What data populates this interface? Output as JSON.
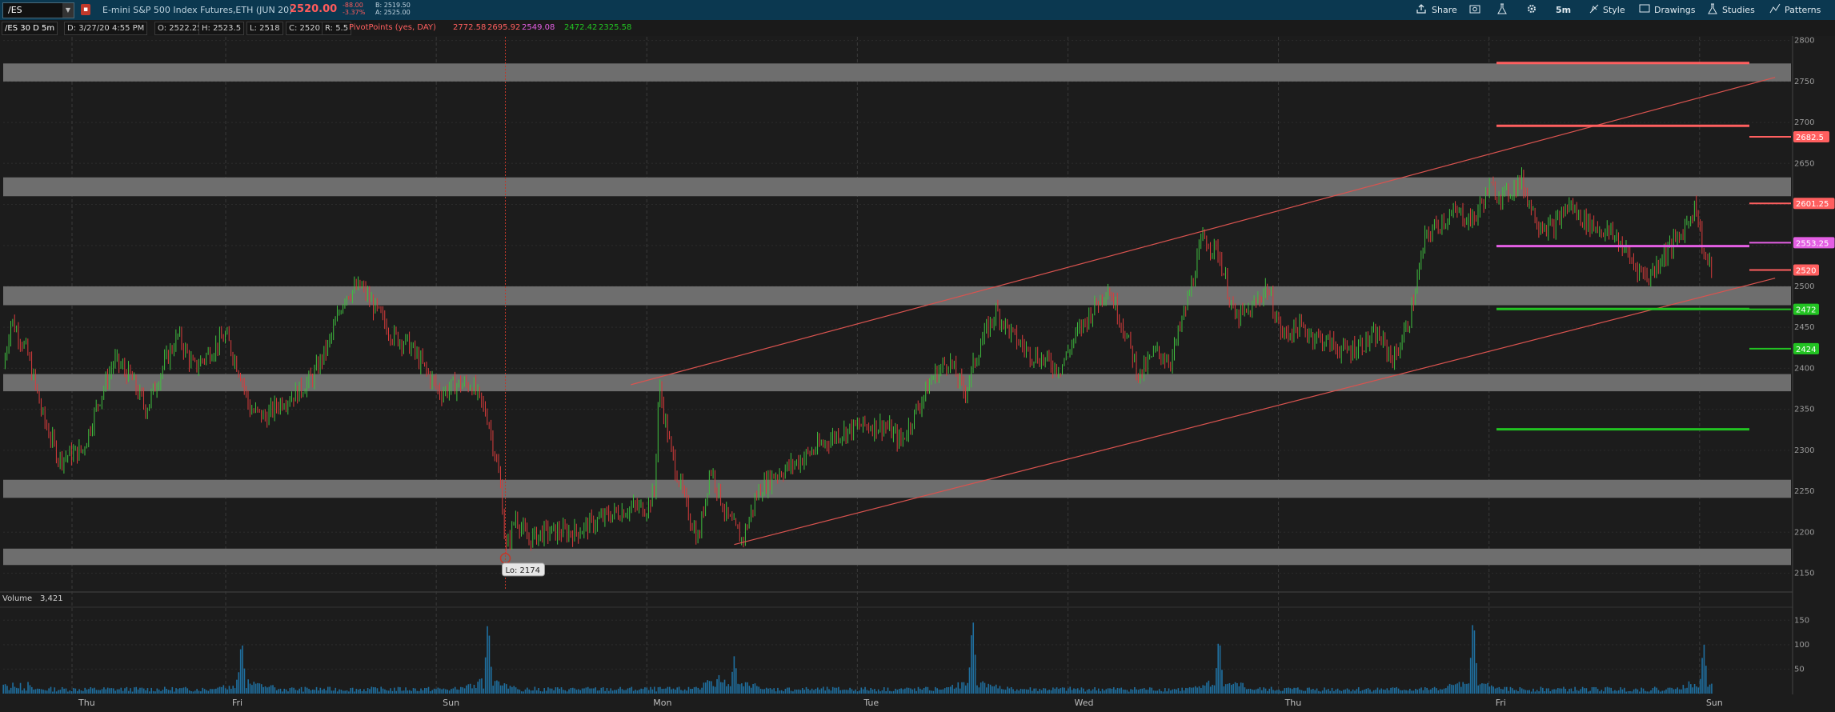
{
  "header": {
    "symbol": "/ES",
    "description": "E-mini S&P 500 Index Futures,ETH (JUN 20)",
    "last_price": "2520.00",
    "change_abs": "-88.00",
    "change_pct": "-3.37%",
    "bid": "B: 2519.50",
    "ask": "A: 2525.00",
    "toolbar": {
      "share": "Share",
      "timeframe": "5m",
      "style": "Style",
      "drawings": "Drawings",
      "studies": "Studies",
      "patterns": "Patterns"
    }
  },
  "infobar": {
    "chart_label": "/ES 30 D 5m",
    "date": "D: 3/27/20 4:55 PM",
    "open": "O: 2522.25",
    "high": "H: 2523.5",
    "low": "L: 2518",
    "close": "C: 2520",
    "range": "R: 5.5",
    "study_name": "PivotPoints (yes, DAY)",
    "pivot_values": [
      "2772.58",
      "2695.92",
      "2549.08",
      "2472.42",
      "2325.58"
    ]
  },
  "colors": {
    "background": "#1c1c1c",
    "up_candle": "#3fbf3f",
    "down_candle": "#d93c3c",
    "zone": "#6e6e6e",
    "channel": "#d9534f",
    "pivot_resistance": "#ff5f5f",
    "pivot_middle": "#e45fe4",
    "pivot_support": "#22c322",
    "volume": "#1f6f9f"
  },
  "chart_data": [
    {
      "type": "candlestick",
      "title": "/ES 30 D 5m",
      "x_labels": [
        "Thu",
        "Fri",
        "Sun",
        "Mon",
        "Tue",
        "Wed",
        "Thu",
        "Fri",
        "Sun"
      ],
      "y_ticks": [
        2150,
        2200,
        2250,
        2300,
        2350,
        2400,
        2450,
        2500,
        2550,
        2600,
        2650,
        2700,
        2750,
        2800
      ],
      "ylim": [
        2130,
        2805
      ],
      "grid": true,
      "price_path": [
        {
          "x": 0,
          "y": 2400
        },
        {
          "x": 0.1,
          "y": 2460
        },
        {
          "x": 0.3,
          "y": 2420
        },
        {
          "x": 0.5,
          "y": 2340
        },
        {
          "x": 0.7,
          "y": 2290
        },
        {
          "x": 1,
          "y": 2300
        },
        {
          "x": 1.2,
          "y": 2360
        },
        {
          "x": 1.4,
          "y": 2410
        },
        {
          "x": 1.6,
          "y": 2390
        },
        {
          "x": 1.8,
          "y": 2350
        },
        {
          "x": 2,
          "y": 2400
        },
        {
          "x": 2.2,
          "y": 2440
        },
        {
          "x": 2.4,
          "y": 2400
        },
        {
          "x": 2.6,
          "y": 2420
        },
        {
          "x": 2.8,
          "y": 2440
        },
        {
          "x": 3,
          "y": 2390
        },
        {
          "x": 3.1,
          "y": 2350
        },
        {
          "x": 3.3,
          "y": 2340
        },
        {
          "x": 3.5,
          "y": 2360
        },
        {
          "x": 3.7,
          "y": 2370
        },
        {
          "x": 3.9,
          "y": 2390
        },
        {
          "x": 4.1,
          "y": 2430
        },
        {
          "x": 4.3,
          "y": 2490
        },
        {
          "x": 4.5,
          "y": 2500
        },
        {
          "x": 4.7,
          "y": 2470
        },
        {
          "x": 4.9,
          "y": 2440
        },
        {
          "x": 5.1,
          "y": 2430
        },
        {
          "x": 5.3,
          "y": 2400
        },
        {
          "x": 5.5,
          "y": 2370
        },
        {
          "x": 5.7,
          "y": 2380
        },
        {
          "x": 5.9,
          "y": 2380
        },
        {
          "x": 6.1,
          "y": 2340
        },
        {
          "x": 6.2,
          "y": 2290
        },
        {
          "x": 6.27,
          "y": 2250
        },
        {
          "x": 6.3,
          "y": 2210
        },
        {
          "x": 6.32,
          "y": 2174
        },
        {
          "x": 6.45,
          "y": 2220
        },
        {
          "x": 6.6,
          "y": 2190
        },
        {
          "x": 6.8,
          "y": 2200
        },
        {
          "x": 7.0,
          "y": 2200
        },
        {
          "x": 7.2,
          "y": 2200
        },
        {
          "x": 7.4,
          "y": 2210
        },
        {
          "x": 7.6,
          "y": 2220
        },
        {
          "x": 7.9,
          "y": 2230
        },
        {
          "x": 8.1,
          "y": 2230
        },
        {
          "x": 8.2,
          "y": 2250
        },
        {
          "x": 8.25,
          "y": 2380
        },
        {
          "x": 8.4,
          "y": 2300
        },
        {
          "x": 8.6,
          "y": 2230
        },
        {
          "x": 8.75,
          "y": 2190
        },
        {
          "x": 8.9,
          "y": 2280
        },
        {
          "x": 9.1,
          "y": 2220
        },
        {
          "x": 9.3,
          "y": 2190
        },
        {
          "x": 9.5,
          "y": 2250
        },
        {
          "x": 9.7,
          "y": 2270
        },
        {
          "x": 9.9,
          "y": 2280
        },
        {
          "x": 10.2,
          "y": 2300
        },
        {
          "x": 10.5,
          "y": 2320
        },
        {
          "x": 10.8,
          "y": 2330
        },
        {
          "x": 11.1,
          "y": 2330
        },
        {
          "x": 11.3,
          "y": 2310
        },
        {
          "x": 11.5,
          "y": 2350
        },
        {
          "x": 11.7,
          "y": 2390
        },
        {
          "x": 11.9,
          "y": 2410
        },
        {
          "x": 12.1,
          "y": 2370
        },
        {
          "x": 12.3,
          "y": 2430
        },
        {
          "x": 12.5,
          "y": 2470
        },
        {
          "x": 12.7,
          "y": 2440
        },
        {
          "x": 12.9,
          "y": 2420
        },
        {
          "x": 13.1,
          "y": 2410
        },
        {
          "x": 13.3,
          "y": 2400
        },
        {
          "x": 13.5,
          "y": 2440
        },
        {
          "x": 13.7,
          "y": 2470
        },
        {
          "x": 13.9,
          "y": 2500
        },
        {
          "x": 14.1,
          "y": 2450
        },
        {
          "x": 14.3,
          "y": 2390
        },
        {
          "x": 14.5,
          "y": 2420
        },
        {
          "x": 14.7,
          "y": 2410
        },
        {
          "x": 14.9,
          "y": 2480
        },
        {
          "x": 15.1,
          "y": 2560
        },
        {
          "x": 15.3,
          "y": 2540
        },
        {
          "x": 15.5,
          "y": 2460
        },
        {
          "x": 15.7,
          "y": 2470
        },
        {
          "x": 15.9,
          "y": 2500
        },
        {
          "x": 16.1,
          "y": 2440
        },
        {
          "x": 16.3,
          "y": 2450
        },
        {
          "x": 16.5,
          "y": 2440
        },
        {
          "x": 16.7,
          "y": 2430
        },
        {
          "x": 16.9,
          "y": 2420
        },
        {
          "x": 17.1,
          "y": 2430
        },
        {
          "x": 17.3,
          "y": 2440
        },
        {
          "x": 17.5,
          "y": 2410
        },
        {
          "x": 17.7,
          "y": 2460
        },
        {
          "x": 17.9,
          "y": 2560
        },
        {
          "x": 18.1,
          "y": 2580
        },
        {
          "x": 18.3,
          "y": 2590
        },
        {
          "x": 18.5,
          "y": 2580
        },
        {
          "x": 18.7,
          "y": 2620
        },
        {
          "x": 18.9,
          "y": 2610
        },
        {
          "x": 19.1,
          "y": 2630
        },
        {
          "x": 19.3,
          "y": 2580
        },
        {
          "x": 19.5,
          "y": 2570
        },
        {
          "x": 19.7,
          "y": 2600
        },
        {
          "x": 19.9,
          "y": 2580
        },
        {
          "x": 20.1,
          "y": 2570
        },
        {
          "x": 20.3,
          "y": 2560
        },
        {
          "x": 20.5,
          "y": 2530
        },
        {
          "x": 20.7,
          "y": 2510
        },
        {
          "x": 20.9,
          "y": 2540
        },
        {
          "x": 21.1,
          "y": 2560
        },
        {
          "x": 21.3,
          "y": 2600
        },
        {
          "x": 21.4,
          "y": 2540
        },
        {
          "x": 21.5,
          "y": 2520
        }
      ],
      "zones": [
        {
          "from": 2750,
          "to": 2772
        },
        {
          "from": 2610,
          "to": 2633
        },
        {
          "from": 2477,
          "to": 2500
        },
        {
          "from": 2372,
          "to": 2393
        },
        {
          "from": 2242,
          "to": 2264
        },
        {
          "from": 2160,
          "to": 2180
        }
      ],
      "channel": [
        {
          "from": {
            "x": 7.9,
            "y": 2380
          },
          "to": {
            "x": 22.3,
            "y": 2755
          }
        },
        {
          "from": {
            "x": 9.2,
            "y": 2185
          },
          "to": {
            "x": 22.3,
            "y": 2510
          }
        }
      ],
      "pivot_lines": [
        {
          "level": 2772.58,
          "label": "",
          "color": "#ff5f5f"
        },
        {
          "level": 2695.92,
          "label": "",
          "color": "#ff5f5f"
        },
        {
          "level": 2549.08,
          "label": "",
          "color": "#e45fe4"
        },
        {
          "level": 2472.42,
          "label": "",
          "color": "#22c322"
        },
        {
          "level": 2325.58,
          "label": "",
          "color": "#22c322"
        }
      ],
      "price_tags": [
        {
          "value": 2682.5,
          "label": "2682.5",
          "color": "#ff5f5f"
        },
        {
          "value": 2601.25,
          "label": "2601.25",
          "color": "#ff5f5f"
        },
        {
          "value": 2553.25,
          "label": "2553.25",
          "color": "#e45fe4"
        },
        {
          "value": 2520,
          "label": "2520",
          "color": "#ff5f5f"
        },
        {
          "value": 2472,
          "label": "2472",
          "color": "#22c322"
        },
        {
          "value": 2424,
          "label": "2424",
          "color": "#22c322"
        }
      ],
      "low_callout": {
        "x": 6.32,
        "value": 2174,
        "label": "Lo: 2174"
      }
    },
    {
      "type": "bar",
      "title": "Volume",
      "current_value": "3,421",
      "y_ticks": [
        50,
        100,
        150
      ],
      "ylim": [
        0,
        175
      ],
      "spikes": [
        {
          "x": 3.0,
          "value": 118
        },
        {
          "x": 6.1,
          "value": 160
        },
        {
          "x": 9.0,
          "value": 42
        },
        {
          "x": 9.2,
          "value": 80
        },
        {
          "x": 12.2,
          "value": 165
        },
        {
          "x": 15.3,
          "value": 125
        },
        {
          "x": 18.5,
          "value": 168
        },
        {
          "x": 21.4,
          "value": 108
        }
      ]
    }
  ]
}
